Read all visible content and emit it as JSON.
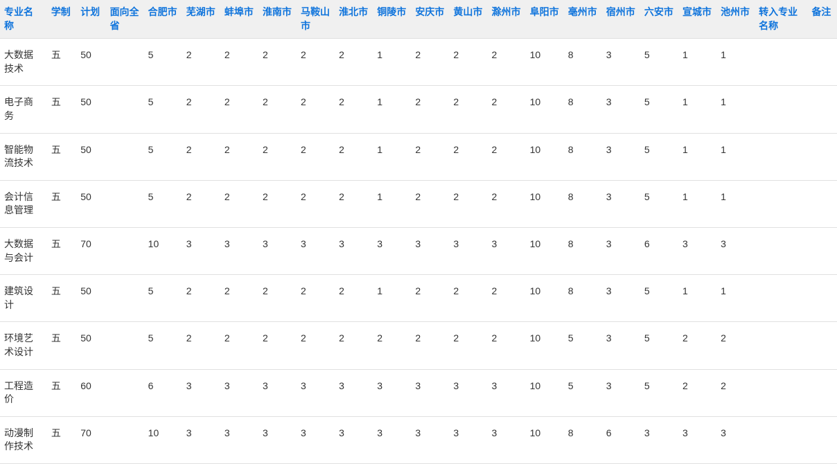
{
  "table": {
    "columns": [
      "专业名称",
      "学制",
      "计划",
      "面向全省",
      "合肥市",
      "芜湖市",
      "蚌埠市",
      "淮南市",
      "马鞍山市",
      "淮北市",
      "铜陵市",
      "安庆市",
      "黄山市",
      "滁州市",
      "阜阳市",
      "亳州市",
      "宿州市",
      "六安市",
      "宣城市",
      "池州市",
      "转入专业名称",
      "备注"
    ],
    "rows": [
      [
        "大数据技术",
        "五",
        "50",
        "",
        "5",
        "2",
        "2",
        "2",
        "2",
        "2",
        "1",
        "2",
        "2",
        "2",
        "10",
        "8",
        "3",
        "5",
        "1",
        "1",
        "",
        ""
      ],
      [
        "电子商务",
        "五",
        "50",
        "",
        "5",
        "2",
        "2",
        "2",
        "2",
        "2",
        "1",
        "2",
        "2",
        "2",
        "10",
        "8",
        "3",
        "5",
        "1",
        "1",
        "",
        ""
      ],
      [
        "智能物流技术",
        "五",
        "50",
        "",
        "5",
        "2",
        "2",
        "2",
        "2",
        "2",
        "1",
        "2",
        "2",
        "2",
        "10",
        "8",
        "3",
        "5",
        "1",
        "1",
        "",
        ""
      ],
      [
        "会计信息管理",
        "五",
        "50",
        "",
        "5",
        "2",
        "2",
        "2",
        "2",
        "2",
        "1",
        "2",
        "2",
        "2",
        "10",
        "8",
        "3",
        "5",
        "1",
        "1",
        "",
        ""
      ],
      [
        "大数据与会计",
        "五",
        "70",
        "",
        "10",
        "3",
        "3",
        "3",
        "3",
        "3",
        "3",
        "3",
        "3",
        "3",
        "10",
        "8",
        "3",
        "6",
        "3",
        "3",
        "",
        ""
      ],
      [
        "建筑设计",
        "五",
        "50",
        "",
        "5",
        "2",
        "2",
        "2",
        "2",
        "2",
        "1",
        "2",
        "2",
        "2",
        "10",
        "8",
        "3",
        "5",
        "1",
        "1",
        "",
        ""
      ],
      [
        "环境艺术设计",
        "五",
        "50",
        "",
        "5",
        "2",
        "2",
        "2",
        "2",
        "2",
        "2",
        "2",
        "2",
        "2",
        "10",
        "5",
        "3",
        "5",
        "2",
        "2",
        "",
        ""
      ],
      [
        "工程造价",
        "五",
        "60",
        "",
        "6",
        "3",
        "3",
        "3",
        "3",
        "3",
        "3",
        "3",
        "3",
        "3",
        "10",
        "5",
        "3",
        "5",
        "2",
        "2",
        "",
        ""
      ],
      [
        "动漫制作技术",
        "五",
        "70",
        "",
        "10",
        "3",
        "3",
        "3",
        "3",
        "3",
        "3",
        "3",
        "3",
        "3",
        "10",
        "8",
        "6",
        "3",
        "3",
        "3",
        "",
        ""
      ]
    ],
    "header_color": "#0f74dc",
    "header_bg": "#f0f0f0",
    "cell_color": "#333333",
    "border_color": "#e0e0e0",
    "font_family": "Microsoft YaHei",
    "font_size": 14
  }
}
